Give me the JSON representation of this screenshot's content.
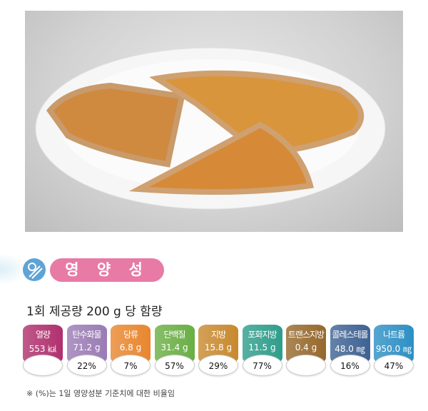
{
  "section_title": "영 양 성 분",
  "serving": "1회 제공량 200 g 당 함량",
  "nutrients": [
    {
      "name": "열량",
      "amount": "553 ㎉",
      "percent": "",
      "color": "#b0306e"
    },
    {
      "name": "탄수화물",
      "amount": "71.2 g",
      "percent": "22%",
      "color": "#9a7bb5"
    },
    {
      "name": "당류",
      "amount": "6.8 g",
      "percent": "7%",
      "color": "#e8862e"
    },
    {
      "name": "단백질",
      "amount": "31.4 g",
      "percent": "57%",
      "color": "#6aae44"
    },
    {
      "name": "지방",
      "amount": "15.8 g",
      "percent": "29%",
      "color": "#c8892e"
    },
    {
      "name": "포화지방",
      "amount": "11.5 g",
      "percent": "77%",
      "color": "#2f9d8b"
    },
    {
      "name": "트랜스지방",
      "amount": "0.4 g",
      "percent": "",
      "color": "#96682c"
    },
    {
      "name": "콜레스테롤",
      "amount": "48.0 ㎎",
      "percent": "16%",
      "color": "#3e6292"
    },
    {
      "name": "나트륨",
      "amount": "950.0 ㎎",
      "percent": "47%",
      "color": "#2d8fc4"
    }
  ],
  "footnote": "※ (%)는 1일 영양성분 기준치에 대한 비율임"
}
